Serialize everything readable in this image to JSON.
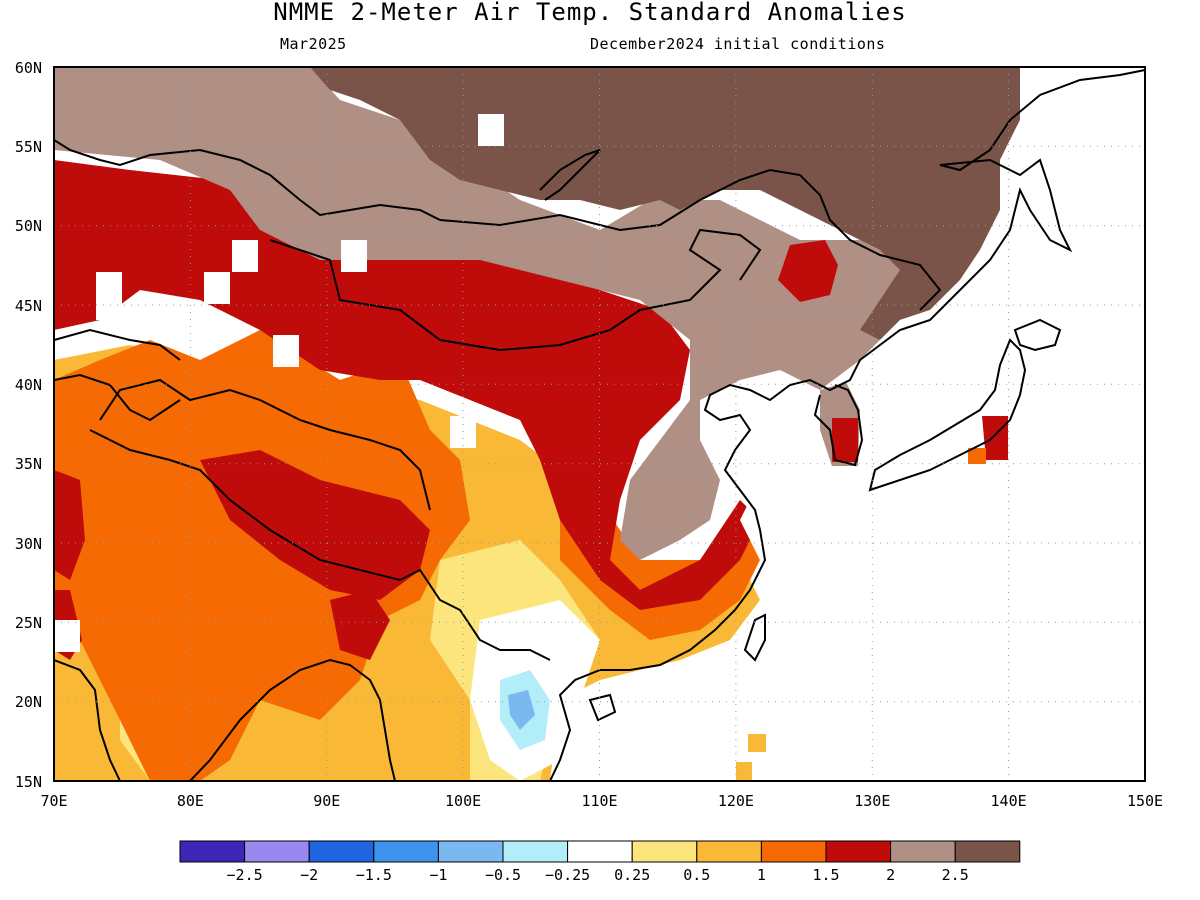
{
  "header": {
    "title": "NMME 2-Meter Air Temp. Standard Anomalies",
    "target_month": "Mar2025",
    "initial_conditions": "December2024 initial conditions"
  },
  "map": {
    "lon_range": [
      70,
      150
    ],
    "lat_range": [
      15,
      60
    ],
    "lat_labels": [
      "60N",
      "55N",
      "50N",
      "45N",
      "40N",
      "35N",
      "30N",
      "25N",
      "20N",
      "15N"
    ],
    "lon_labels": [
      "70E",
      "80E",
      "90E",
      "100E",
      "110E",
      "120E",
      "130E",
      "140E",
      "150E"
    ],
    "gridlines": true,
    "zones": [
      {
        "name": "far-north-band",
        "value_range": "2.5+",
        "color": "#7a5448"
      },
      {
        "name": "siberia-band",
        "value_range": "2 to 2.5",
        "color": "#b08f84"
      },
      {
        "name": "central-asia-mongolia",
        "value_range": "1.5 to 2",
        "color": "#c00b0b"
      },
      {
        "name": "china-interior",
        "value_range": "2 to 2.5",
        "color": "#b08f84"
      },
      {
        "name": "india-western-china",
        "value_range": "1 to 1.5",
        "color": "#f56a02"
      },
      {
        "name": "southern-asia",
        "value_range": "0.5 to 1",
        "color": "#f9b835"
      },
      {
        "name": "indochina",
        "value_range": "-0.25 to 0.25",
        "color": "#ffffff"
      }
    ]
  },
  "colorbar": {
    "colors": [
      "#3b26b8",
      "#9a88f0",
      "#1f64e0",
      "#3e93ef",
      "#79b9f0",
      "#b1eefa",
      "#ffffff",
      "#fce57d",
      "#f9b835",
      "#f56a02",
      "#c00b0b",
      "#b08f84",
      "#7a5448"
    ],
    "labels": [
      "-2.5",
      "-2",
      "-1.5",
      "-1",
      "-0.5",
      "-0.25",
      "0.25",
      "0.5",
      "1",
      "1.5",
      "2",
      "2.5"
    ]
  }
}
